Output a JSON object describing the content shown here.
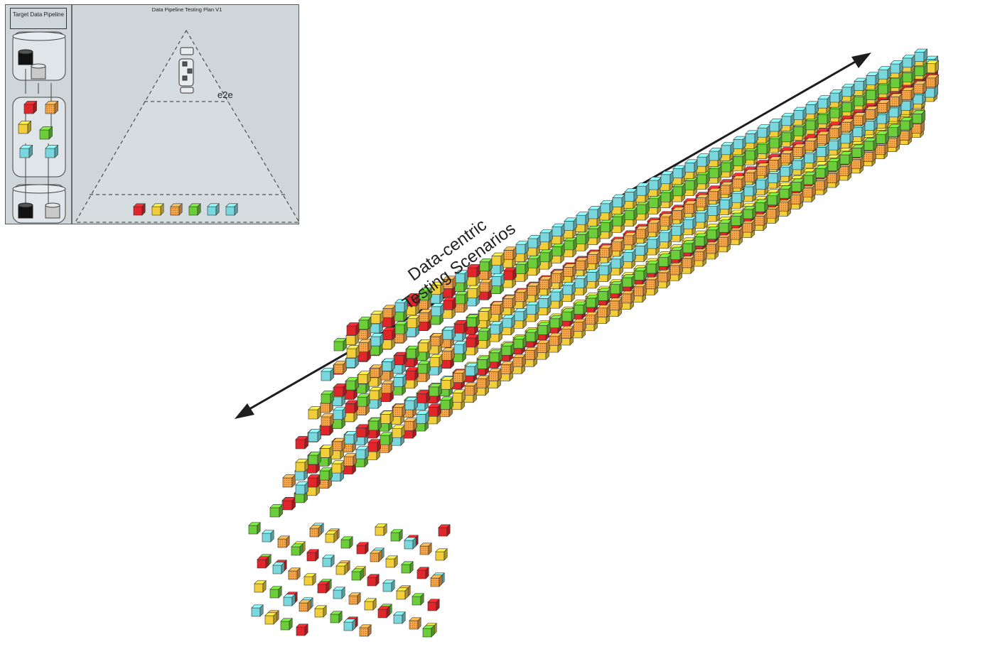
{
  "inset": {
    "pipeline_title": "Target Data Pipeline",
    "plan_title": "Data Pipeline Testing Plan V1",
    "e2e_label": "e2e",
    "legend_cubes": [
      "red",
      "yellow",
      "orange-hatched",
      "green",
      "cyan",
      "cyan"
    ]
  },
  "arrow_label": {
    "line1": "Data-centric",
    "line2": "Testing Scenarios"
  },
  "colors": {
    "red": "#e0262b",
    "yellow": "#f2cf3a",
    "orange": "#f5a54a",
    "green": "#6ccd3a",
    "cyan": "#79d8dd",
    "panel_bg": "#cfd6da",
    "ink": "#222222"
  }
}
